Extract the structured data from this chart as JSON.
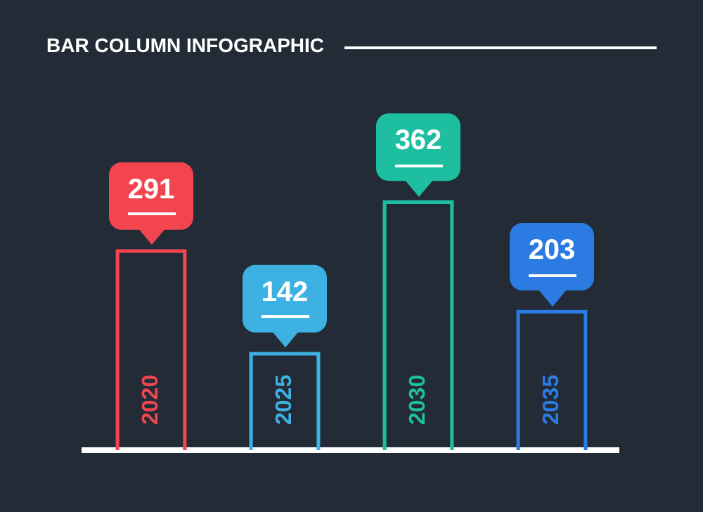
{
  "chart_data": {
    "type": "bar",
    "title": "BAR COLUMN INFOGRAPHIC",
    "categories": [
      "2020",
      "2025",
      "2030",
      "2035"
    ],
    "values": [
      291,
      142,
      362,
      203
    ],
    "colors": [
      "#f2454f",
      "#3cb1e2",
      "#1dbfa0",
      "#2b7be3"
    ],
    "data_labels": true,
    "grid": false,
    "legend": false
  }
}
